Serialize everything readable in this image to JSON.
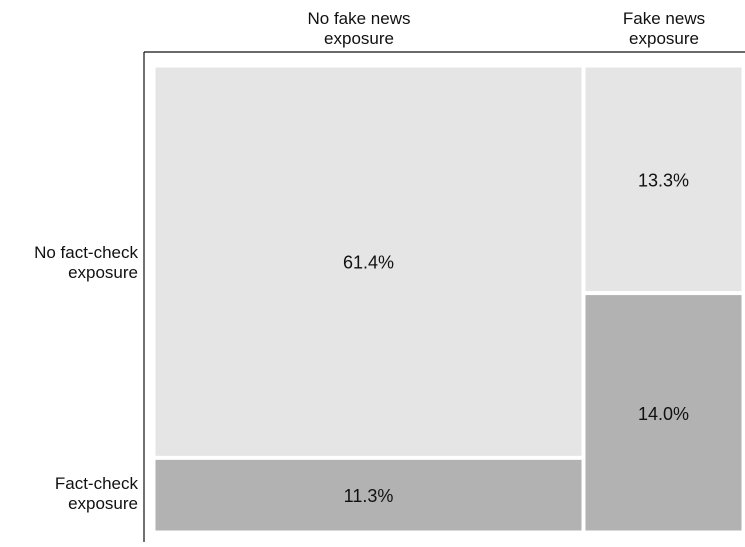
{
  "chart_data": {
    "type": "mosaic",
    "title": "",
    "columns": [
      {
        "label_lines": [
          "No fake news",
          "exposure"
        ],
        "width_share": 0.727
      },
      {
        "label_lines": [
          "Fake news",
          "exposure"
        ],
        "width_share": 0.273
      }
    ],
    "rows": [
      {
        "label_lines": [
          "No fact-check",
          "exposure"
        ]
      },
      {
        "label_lines": [
          "Fact-check",
          "exposure"
        ]
      }
    ],
    "cells": [
      {
        "column": 0,
        "row": 0,
        "value": 61.4,
        "label": "61.4%",
        "fill": "#e5e5e5"
      },
      {
        "column": 0,
        "row": 1,
        "value": 11.3,
        "label": "11.3%",
        "fill": "#b2b2b2"
      },
      {
        "column": 1,
        "row": 0,
        "value": 13.3,
        "label": "13.3%",
        "fill": "#e5e5e5"
      },
      {
        "column": 1,
        "row": 1,
        "value": 14.0,
        "label": "14.0%",
        "fill": "#b2b2b2"
      }
    ],
    "colors": {
      "light": "#e5e5e5",
      "dark": "#b2b2b2",
      "axis": "#111111",
      "cell_border": "#ffffff"
    }
  }
}
